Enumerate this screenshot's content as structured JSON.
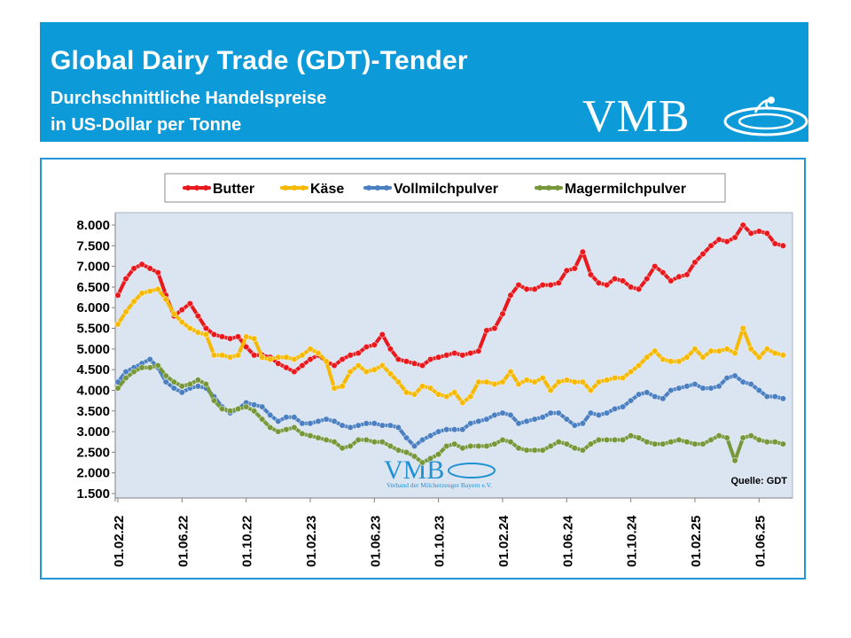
{
  "header": {
    "title": "Global Dairy Trade (GDT)-Tender",
    "subtitle_line1": "Durchschnittliche Handelspreise",
    "subtitle_line2": "in US-Dollar per Tonne",
    "logo_text": "VMB"
  },
  "watermark": {
    "logo_text": "VMB",
    "caption": "Verband der Milcherzeuger Bayern e.V."
  },
  "source_label": "Quelle:  GDT",
  "colors": {
    "header_bg": "#0d9ad8",
    "frame_border": "#2196d6",
    "plot_bg": "#dbe4f1",
    "butter": "#e8181c",
    "kaese": "#f7b900",
    "vollmilch": "#4a7fc1",
    "magermilch": "#76983a"
  },
  "chart_data": {
    "type": "line",
    "title": "Global Dairy Trade (GDT)-Tender",
    "xlabel": "",
    "ylabel": "US-Dollar per Tonne",
    "ylim": [
      1500,
      8000
    ],
    "yticks": [
      1500,
      2000,
      2500,
      3000,
      3500,
      4000,
      4500,
      5000,
      5500,
      6000,
      6500,
      7000,
      7500,
      8000
    ],
    "ytick_labels": [
      "1.500",
      "2.000",
      "2.500",
      "3.000",
      "3.500",
      "4.000",
      "4.500",
      "5.000",
      "5.500",
      "6.000",
      "6.500",
      "7.000",
      "7.500",
      "8.000"
    ],
    "x_start_month": 0,
    "x_end_month": 41.7,
    "xticks": [
      0,
      4,
      8,
      12,
      16,
      20,
      24,
      28,
      32,
      36,
      40
    ],
    "xtick_labels": [
      "01.02.22",
      "01.06.22",
      "01.10.22",
      "01.02.23",
      "01.06.23",
      "01.10.23",
      "01.02.24",
      "01.06.24",
      "01.10.24",
      "01.02.25",
      "01.06.25"
    ],
    "grid": false,
    "legend": "top",
    "series": [
      {
        "name": "Butter",
        "x": [
          0,
          0.5,
          1,
          1.5,
          2,
          2.5,
          3,
          3.5,
          4,
          4.5,
          5,
          5.5,
          6,
          6.5,
          7,
          7.5,
          8,
          8.5,
          9,
          9.5,
          10,
          10.5,
          11,
          11.5,
          12,
          12.5,
          13,
          13.5,
          14,
          14.5,
          15,
          15.5,
          16,
          16.5,
          17,
          17.5,
          18,
          18.5,
          19,
          19.5,
          20,
          20.5,
          21,
          21.5,
          22,
          22.5,
          23,
          23.5,
          24,
          24.5,
          25,
          25.5,
          26,
          26.5,
          27,
          27.5,
          28,
          28.5,
          29,
          29.5,
          30,
          30.5,
          31,
          31.5,
          32,
          32.5,
          33,
          33.5,
          34,
          34.5,
          35,
          35.5,
          36,
          36.5,
          37,
          37.5,
          38,
          38.5,
          39,
          39.5,
          40,
          40.5,
          41,
          41.5
        ],
        "values": [
          6300,
          6700,
          6950,
          7050,
          6950,
          6850,
          6300,
          5800,
          5950,
          6100,
          5800,
          5500,
          5350,
          5300,
          5250,
          5300,
          5050,
          4850,
          4850,
          4800,
          4650,
          4550,
          4450,
          4600,
          4750,
          4850,
          4700,
          4600,
          4750,
          4850,
          4900,
          5050,
          5100,
          5350,
          5000,
          4750,
          4700,
          4650,
          4600,
          4750,
          4800,
          4850,
          4900,
          4850,
          4900,
          4950,
          5450,
          5500,
          5850,
          6300,
          6550,
          6450,
          6450,
          6550,
          6550,
          6600,
          6900,
          6950,
          7350,
          6800,
          6600,
          6550,
          6700,
          6650,
          6500,
          6450,
          6700,
          7000,
          6850,
          6650,
          6750,
          6800,
          7100,
          7300,
          7500,
          7650,
          7600,
          7700,
          8000,
          7800,
          7850,
          7800,
          7550,
          7500
        ]
      },
      {
        "name": "Käse",
        "x": [
          0,
          0.5,
          1,
          1.5,
          2,
          2.5,
          3,
          3.5,
          4,
          4.5,
          5,
          5.5,
          6,
          6.5,
          7,
          7.5,
          8,
          8.5,
          9,
          9.5,
          10,
          10.5,
          11,
          11.5,
          12,
          12.5,
          13,
          13.5,
          14,
          14.5,
          15,
          15.5,
          16,
          16.5,
          17,
          17.5,
          18,
          18.5,
          19,
          19.5,
          20,
          20.5,
          21,
          21.5,
          22,
          22.5,
          23,
          23.5,
          24,
          24.5,
          25,
          25.5,
          26,
          26.5,
          27,
          27.5,
          28,
          28.5,
          29,
          29.5,
          30,
          30.5,
          31,
          31.5,
          32,
          32.5,
          33,
          33.5,
          34,
          34.5,
          35,
          35.5,
          36,
          36.5,
          37,
          37.5,
          38,
          38.5,
          39,
          39.5,
          40,
          40.5,
          41,
          41.5
        ],
        "values": [
          5600,
          5900,
          6150,
          6350,
          6400,
          6450,
          6200,
          5850,
          5650,
          5500,
          5400,
          5350,
          4850,
          4850,
          4800,
          4850,
          5300,
          5250,
          4800,
          4750,
          4800,
          4800,
          4750,
          4850,
          5000,
          4900,
          4700,
          4050,
          4100,
          4450,
          4600,
          4450,
          4500,
          4600,
          4400,
          4200,
          3950,
          3900,
          4100,
          4050,
          3900,
          3850,
          3950,
          3700,
          3850,
          4200,
          4200,
          4150,
          4200,
          4450,
          4150,
          4250,
          4200,
          4300,
          4000,
          4200,
          4250,
          4200,
          4200,
          4000,
          4200,
          4250,
          4300,
          4300,
          4450,
          4600,
          4800,
          4950,
          4750,
          4700,
          4700,
          4800,
          5000,
          4800,
          4950,
          4950,
          5000,
          4900,
          5500,
          5000,
          4800,
          5000,
          4900,
          4850
        ]
      },
      {
        "name": "Vollmilchpulver",
        "x": [
          0,
          0.5,
          1,
          1.5,
          2,
          2.5,
          3,
          3.5,
          4,
          4.5,
          5,
          5.5,
          6,
          6.5,
          7,
          7.5,
          8,
          8.5,
          9,
          9.5,
          10,
          10.5,
          11,
          11.5,
          12,
          12.5,
          13,
          13.5,
          14,
          14.5,
          15,
          15.5,
          16,
          16.5,
          17,
          17.5,
          18,
          18.5,
          19,
          19.5,
          20,
          20.5,
          21,
          21.5,
          22,
          22.5,
          23,
          23.5,
          24,
          24.5,
          25,
          25.5,
          26,
          26.5,
          27,
          27.5,
          28,
          28.5,
          29,
          29.5,
          30,
          30.5,
          31,
          31.5,
          32,
          32.5,
          33,
          33.5,
          34,
          34.5,
          35,
          35.5,
          36,
          36.5,
          37,
          37.5,
          38,
          38.5,
          39,
          39.5,
          40,
          40.5,
          41,
          41.5
        ],
        "values": [
          4200,
          4450,
          4550,
          4650,
          4750,
          4550,
          4200,
          4050,
          3950,
          4050,
          4100,
          4050,
          3850,
          3600,
          3450,
          3550,
          3700,
          3650,
          3600,
          3400,
          3250,
          3350,
          3350,
          3200,
          3200,
          3250,
          3300,
          3250,
          3150,
          3100,
          3150,
          3200,
          3200,
          3150,
          3150,
          3100,
          2850,
          2650,
          2800,
          2900,
          3000,
          3050,
          3050,
          3050,
          3200,
          3250,
          3300,
          3400,
          3450,
          3400,
          3200,
          3250,
          3300,
          3350,
          3450,
          3450,
          3300,
          3150,
          3200,
          3450,
          3400,
          3450,
          3550,
          3600,
          3750,
          3900,
          3950,
          3850,
          3800,
          4000,
          4050,
          4100,
          4150,
          4050,
          4050,
          4100,
          4300,
          4350,
          4200,
          4150,
          4000,
          3850,
          3850,
          3800
        ]
      },
      {
        "name": "Magermilchpulver",
        "x": [
          0,
          0.5,
          1,
          1.5,
          2,
          2.5,
          3,
          3.5,
          4,
          4.5,
          5,
          5.5,
          6,
          6.5,
          7,
          7.5,
          8,
          8.5,
          9,
          9.5,
          10,
          10.5,
          11,
          11.5,
          12,
          12.5,
          13,
          13.5,
          14,
          14.5,
          15,
          15.5,
          16,
          16.5,
          17,
          17.5,
          18,
          18.5,
          19,
          19.5,
          20,
          20.5,
          21,
          21.5,
          22,
          22.5,
          23,
          23.5,
          24,
          24.5,
          25,
          25.5,
          26,
          26.5,
          27,
          27.5,
          28,
          28.5,
          29,
          29.5,
          30,
          30.5,
          31,
          31.5,
          32,
          32.5,
          33,
          33.5,
          34,
          34.5,
          35,
          35.5,
          36,
          36.5,
          37,
          37.5,
          38,
          38.5,
          39,
          39.5,
          40,
          40.5,
          41,
          41.5
        ],
        "values": [
          4050,
          4300,
          4450,
          4550,
          4550,
          4600,
          4350,
          4200,
          4100,
          4150,
          4250,
          4150,
          3750,
          3550,
          3500,
          3550,
          3600,
          3500,
          3300,
          3100,
          3000,
          3050,
          3100,
          2950,
          2900,
          2850,
          2800,
          2750,
          2600,
          2650,
          2800,
          2800,
          2750,
          2750,
          2650,
          2550,
          2500,
          2400,
          2250,
          2350,
          2450,
          2650,
          2700,
          2600,
          2650,
          2650,
          2650,
          2700,
          2800,
          2750,
          2600,
          2550,
          2550,
          2550,
          2650,
          2750,
          2700,
          2600,
          2550,
          2700,
          2800,
          2800,
          2800,
          2800,
          2900,
          2850,
          2750,
          2700,
          2700,
          2750,
          2800,
          2750,
          2700,
          2700,
          2800,
          2900,
          2850,
          2300,
          2850,
          2900,
          2800,
          2750,
          2750,
          2700
        ]
      }
    ]
  }
}
